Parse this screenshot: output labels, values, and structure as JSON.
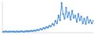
{
  "chart_data": {
    "type": "line",
    "x": [
      0,
      1,
      2,
      3,
      4,
      5,
      6,
      7,
      8,
      9,
      10,
      11,
      12,
      13,
      14,
      15,
      16,
      17,
      18,
      19,
      20,
      21,
      22,
      23,
      24,
      25,
      26,
      27,
      28,
      29,
      30,
      31,
      32,
      33,
      34,
      35,
      36,
      37,
      38,
      39,
      40,
      41,
      42,
      43,
      44,
      45,
      46,
      47,
      48,
      49,
      50,
      51,
      52,
      53,
      54,
      55,
      56,
      57,
      58,
      59,
      60
    ],
    "values": [
      3,
      3,
      4,
      3,
      3,
      4,
      3,
      4,
      3,
      3,
      4,
      3,
      4,
      4,
      3,
      4,
      5,
      4,
      5,
      6,
      5,
      7,
      6,
      9,
      8,
      12,
      10,
      15,
      13,
      18,
      16,
      22,
      20,
      28,
      24,
      38,
      30,
      55,
      40,
      95,
      60,
      45,
      80,
      50,
      65,
      42,
      70,
      48,
      55,
      35,
      60,
      40,
      52,
      30,
      45,
      28,
      50,
      32,
      40,
      30,
      38
    ],
    "color": "#4a90d9",
    "marker": "circle",
    "xlim": [
      0,
      60
    ],
    "ylim": [
      0,
      100
    ],
    "tick_labels": false
  }
}
